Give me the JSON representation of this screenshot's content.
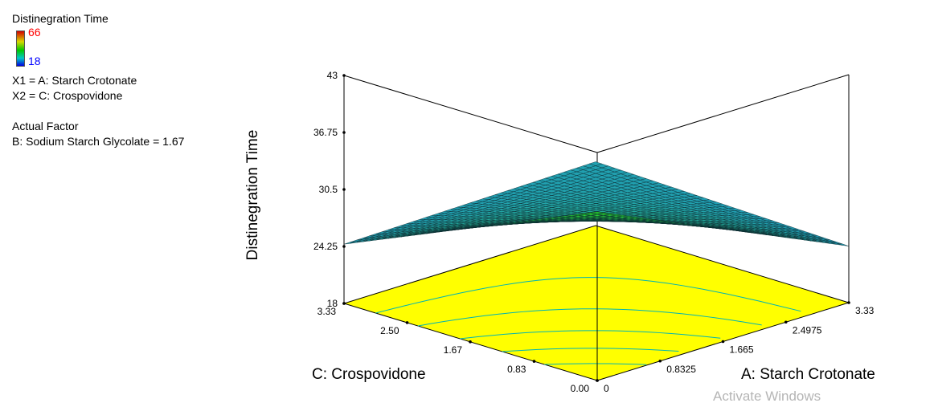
{
  "legend": {
    "title": "Distinegration Time",
    "scale_max": "66",
    "scale_min": "18",
    "x1": "X1 = A: Starch Crotonate",
    "x2": "X2 = C: Crospovidone",
    "actual_factor_heading": "Actual Factor",
    "actual_factor": "B: Sodium Starch Glycolate  = 1.67"
  },
  "watermark": "Activate Windows",
  "chart_data": {
    "type": "surface",
    "z_axis": {
      "label": "Distinegration Time",
      "ticks": [
        "18",
        "24.25",
        "30.5",
        "36.75",
        "43"
      ],
      "range": [
        18,
        43
      ]
    },
    "a_axis": {
      "label": "A: Starch Crotonate",
      "ticks": [
        "0",
        "0.8325",
        "1.665",
        "2.4975",
        "3.33"
      ],
      "range": [
        0,
        3.33
      ]
    },
    "c_axis": {
      "label": "C: Crospovidone",
      "ticks": [
        "0.00",
        "0.83",
        "1.67",
        "2.50",
        "3.33"
      ],
      "range": [
        0,
        3.33
      ]
    },
    "corner_values": [
      {
        "A": 0,
        "C": 0,
        "time": 36.5
      },
      {
        "A": 3.33,
        "C": 0,
        "time": 24.2
      },
      {
        "A": 0,
        "C": 3.33,
        "time": 24.5
      },
      {
        "A": 3.33,
        "C": 3.33,
        "time": 25.0
      }
    ],
    "colors": {
      "floor": "#ffff00",
      "floor_contours": "#00b4b4",
      "surface_high": "#20d020",
      "surface_low": "#20a0c0"
    }
  }
}
